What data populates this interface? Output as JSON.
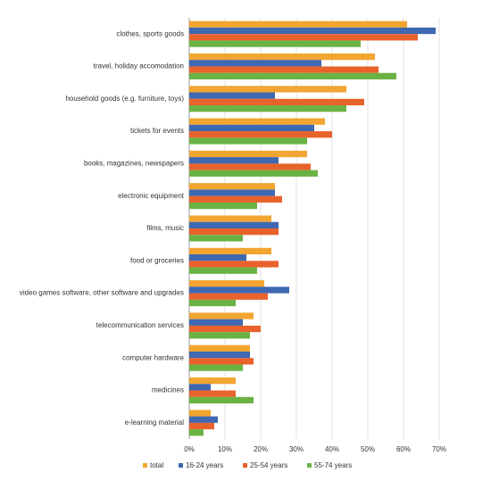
{
  "chart_data": {
    "type": "hbar",
    "categories": [
      "clothes, sports goods",
      "travel, holiday accomodation",
      "household goods (e.g. furniture, toys)",
      "tickets for events",
      "books, magazines, newspapers",
      "electronic equipment",
      "films, music",
      "food or groceries",
      "video games software, other software and upgrades",
      "telecommunication services",
      "computer hardware",
      "medicines",
      "e-learning material"
    ],
    "series": [
      {
        "name": "total",
        "color": "#f2a531",
        "values": [
          61,
          52,
          44,
          38,
          33,
          24,
          23,
          23,
          21,
          18,
          17,
          13,
          6
        ]
      },
      {
        "name": "16-24 years",
        "color": "#3e68b0",
        "values": [
          69,
          37,
          24,
          35,
          25,
          24,
          25,
          16,
          28,
          15,
          17,
          6,
          8
        ]
      },
      {
        "name": "25-54 years",
        "color": "#e8622c",
        "values": [
          64,
          53,
          49,
          40,
          34,
          26,
          25,
          25,
          22,
          20,
          18,
          13,
          7
        ]
      },
      {
        "name": "55-74 years",
        "color": "#6bb244",
        "values": [
          48,
          58,
          44,
          33,
          36,
          19,
          15,
          19,
          13,
          17,
          15,
          18,
          4
        ]
      }
    ],
    "xlim": [
      0,
      70
    ],
    "xticks": [
      {
        "value": 0,
        "label": "0%"
      },
      {
        "value": 10,
        "label": "10%"
      },
      {
        "value": 20,
        "label": "20%"
      },
      {
        "value": 30,
        "label": "30%"
      },
      {
        "value": 40,
        "label": "40%"
      },
      {
        "value": 50,
        "label": "50%"
      },
      {
        "value": 60,
        "label": "60%"
      },
      {
        "value": 70,
        "label": "70%"
      }
    ],
    "grid": true
  }
}
